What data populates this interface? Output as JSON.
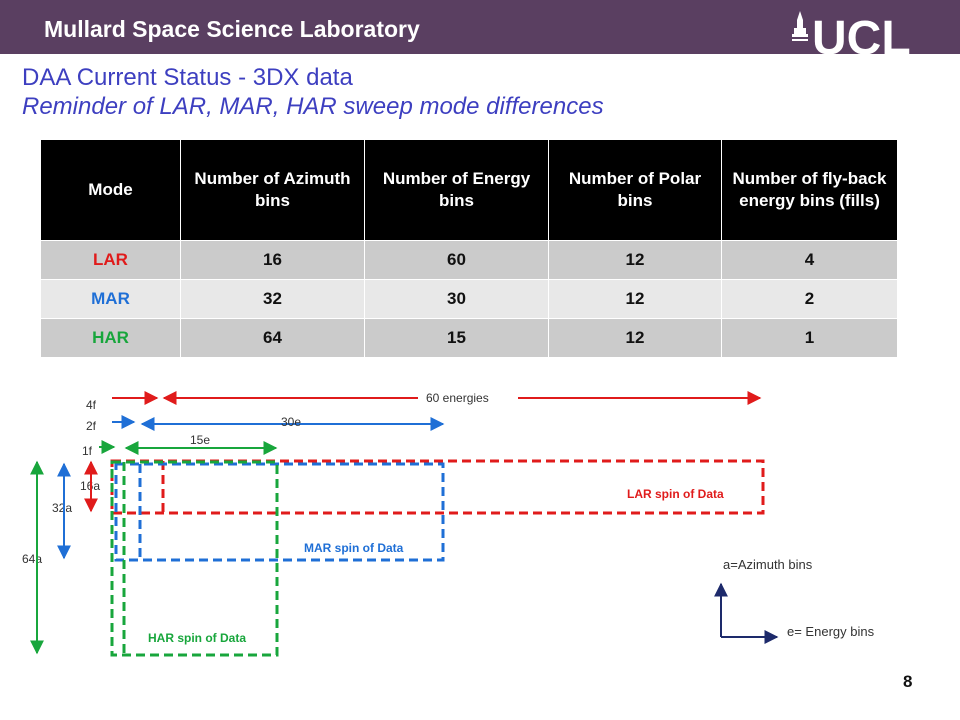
{
  "header": {
    "lab_name": "Mullard Space Science Laboratory",
    "logo": "UCL"
  },
  "title": "DAA Current Status  - 3DX data",
  "subtitle": "Reminder of LAR, MAR, HAR sweep mode differences",
  "table": {
    "headers": [
      "Mode",
      "Number of Azimuth bins",
      "Number of Energy bins",
      "Number of Polar bins",
      "Number of fly-back energy bins (fills)"
    ],
    "rows": [
      {
        "mode": "LAR",
        "mode_color": "#e01b1b",
        "azimuth": "16",
        "energy": "60",
        "polar": "12",
        "fills": "4"
      },
      {
        "mode": "MAR",
        "mode_color": "#1f6fd6",
        "azimuth": "32",
        "energy": "30",
        "polar": "12",
        "fills": "2"
      },
      {
        "mode": "HAR",
        "mode_color": "#18a63c",
        "azimuth": "64",
        "energy": "15",
        "polar": "12",
        "fills": "1"
      }
    ]
  },
  "diagram": {
    "colors": {
      "lar": "#e01b1b",
      "mar": "#1f6fd6",
      "har": "#18a63c"
    },
    "labels": {
      "f4": "4f",
      "f2": "2f",
      "f1": "1f",
      "e60": "60 energies",
      "e30": "30e",
      "e15": "15e",
      "a16": "16a",
      "a32": "32a",
      "a64": "64a",
      "lar_spin": "LAR spin of Data",
      "mar_spin": "MAR spin of Data",
      "har_spin": "HAR spin of Data"
    },
    "legend": {
      "azimuth": "a=Azimuth bins",
      "energy": "e= Energy bins"
    }
  },
  "page_number": "8"
}
